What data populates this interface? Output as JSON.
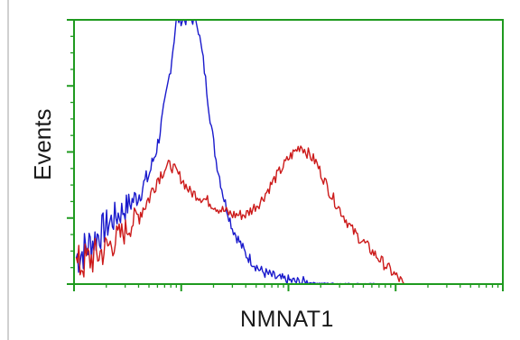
{
  "chart_data": {
    "type": "line",
    "title": "",
    "xlabel": "NMNAT1",
    "ylabel": "Events",
    "x_scale": "log",
    "xlim": [
      1,
      10000
    ],
    "ylim": [
      0,
      4
    ],
    "grid": false,
    "legend": "none",
    "frame_color": "#1f9a1f",
    "series": [
      {
        "color": "#1a1acc",
        "x": [
          1.05,
          1.3,
          1.7,
          2.2,
          3,
          4,
          5,
          6,
          7,
          8,
          9,
          10,
          11,
          12.5,
          14,
          16,
          18,
          21,
          25,
          30,
          40,
          55,
          80,
          120,
          200,
          350,
          700
        ],
        "y": [
          0.4,
          0.55,
          0.75,
          0.95,
          1.15,
          1.35,
          1.65,
          2.1,
          2.7,
          3.3,
          4.0,
          4.0,
          4.0,
          4.0,
          4.0,
          3.4,
          2.7,
          1.9,
          1.3,
          0.85,
          0.45,
          0.2,
          0.08,
          0.03,
          0.01,
          0.005,
          0.0
        ]
      },
      {
        "color": "#cc1a1a",
        "x": [
          1.05,
          1.3,
          1.7,
          2.2,
          3,
          4,
          5,
          6,
          7,
          8,
          10,
          12,
          14,
          18,
          22,
          30,
          40,
          55,
          75,
          100,
          130,
          180,
          250,
          400,
          600,
          900,
          1200
        ],
        "y": [
          0.25,
          0.35,
          0.45,
          0.6,
          0.8,
          1.05,
          1.3,
          1.6,
          1.75,
          1.8,
          1.6,
          1.4,
          1.35,
          1.25,
          1.15,
          1.05,
          1.05,
          1.25,
          1.6,
          1.9,
          2.1,
          1.85,
          1.35,
          0.8,
          0.5,
          0.2,
          0.0
        ]
      }
    ]
  }
}
